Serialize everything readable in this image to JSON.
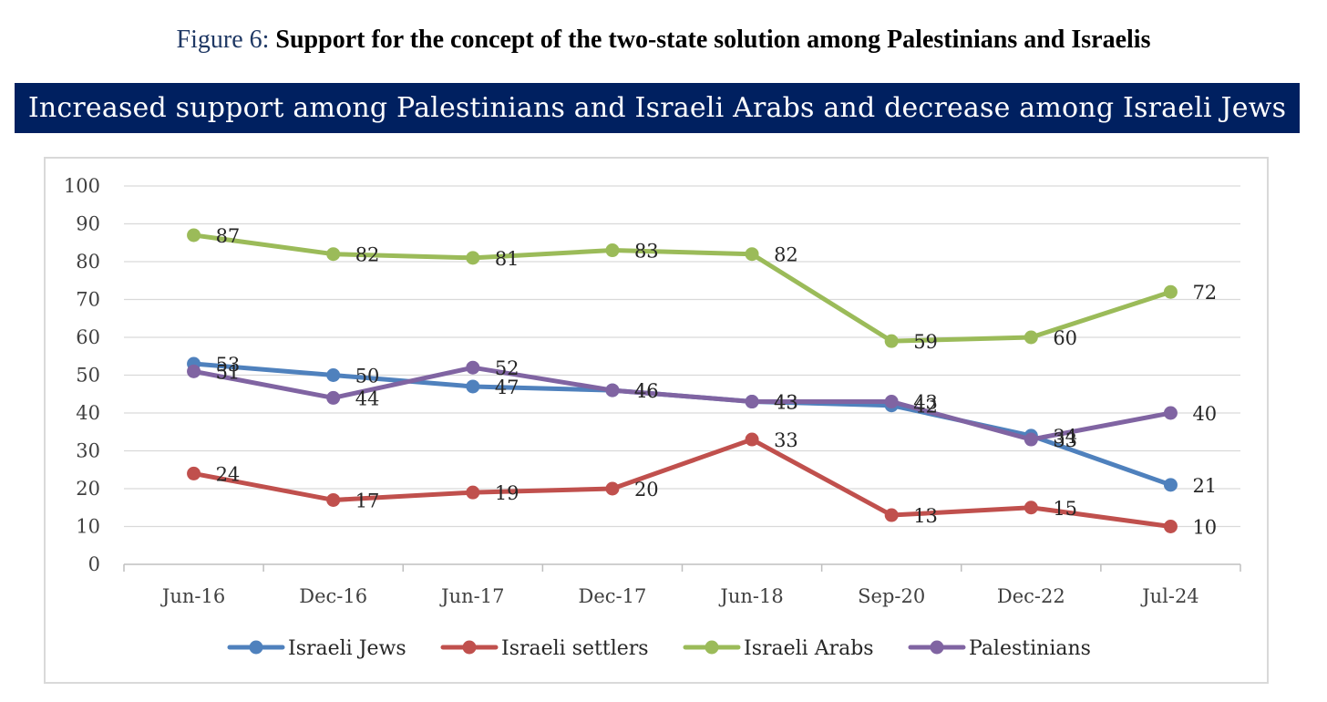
{
  "figure": {
    "number_label": "Figure 6:",
    "title": "Support for the concept of the two-state solution among Palestinians and Israelis"
  },
  "banner": {
    "text": "Increased support among Palestinians and Israeli Arabs and decrease among Israeli Jews"
  },
  "chart_data": {
    "type": "line",
    "title": "Support for the concept of the two-state solution among Palestinians and Israelis",
    "subtitle": "Increased support among Palestinians and Israeli Arabs and decrease among Israeli Jews",
    "xlabel": "",
    "ylabel": "",
    "categories": [
      "Jun-16",
      "Dec-16",
      "Jun-17",
      "Dec-17",
      "Jun-18",
      "Sep-20",
      "Dec-22",
      "Jul-24"
    ],
    "ylim": [
      0,
      100
    ],
    "yticks": [
      0,
      10,
      20,
      30,
      40,
      50,
      60,
      70,
      80,
      90,
      100
    ],
    "grid": true,
    "legend_position": "bottom",
    "series": [
      {
        "name": "Israeli Jews",
        "color": "#4f81bd",
        "values": [
          53,
          50,
          47,
          46,
          43,
          42,
          34,
          21
        ]
      },
      {
        "name": "Israeli settlers",
        "color": "#c0504d",
        "values": [
          24,
          17,
          19,
          20,
          33,
          13,
          15,
          10
        ]
      },
      {
        "name": "Israeli Arabs",
        "color": "#9bbb59",
        "values": [
          87,
          82,
          81,
          83,
          82,
          59,
          60,
          72
        ]
      },
      {
        "name": "Palestinians",
        "color": "#8064a2",
        "values": [
          51,
          44,
          52,
          46,
          43,
          43,
          33,
          40
        ]
      }
    ]
  }
}
